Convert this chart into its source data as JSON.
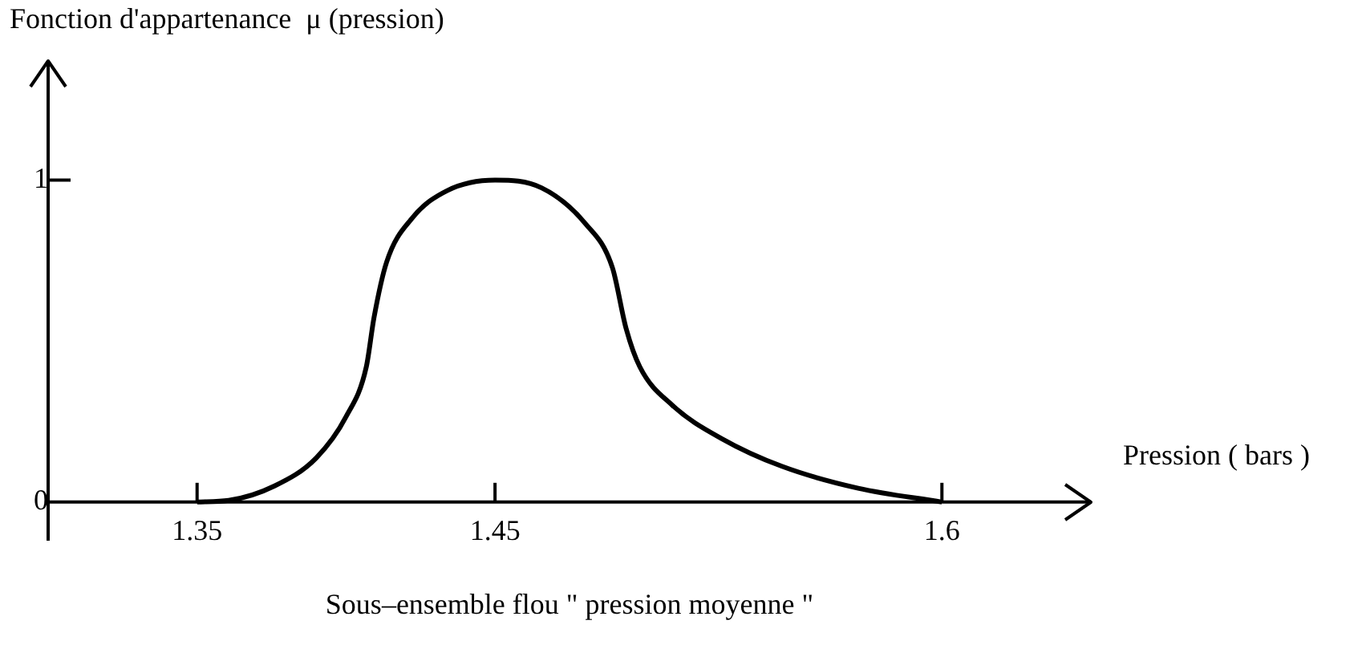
{
  "chart_data": {
    "type": "line",
    "title": "Sous–ensemble flou \" pression moyenne \"",
    "xlabel": "Pression ( bars )",
    "ylabel": "Fonction d'appartenance  μ (pression)",
    "xlim": [
      1.3,
      1.65
    ],
    "ylim": [
      -0.12,
      1.37
    ],
    "xticks": [
      1.35,
      1.45,
      1.6
    ],
    "yticks": [
      0,
      1
    ],
    "series": [
      {
        "color": "#000000",
        "x": [
          1.35,
          1.3606,
          1.376,
          1.39,
          1.4,
          1.4068,
          1.4094,
          1.4136,
          1.4222,
          1.4341,
          1.45,
          1.4656,
          1.4803,
          1.4894,
          1.494,
          1.4986,
          1.5096,
          1.5261,
          1.5463,
          1.5719,
          1.6
        ],
        "values": [
          0,
          0.005,
          0.05,
          0.137,
          0.265,
          0.42,
          0.574,
          0.745,
          0.882,
          0.968,
          1,
          0.976,
          0.865,
          0.728,
          0.539,
          0.42,
          0.3,
          0.197,
          0.111,
          0.043,
          0
        ]
      }
    ]
  }
}
